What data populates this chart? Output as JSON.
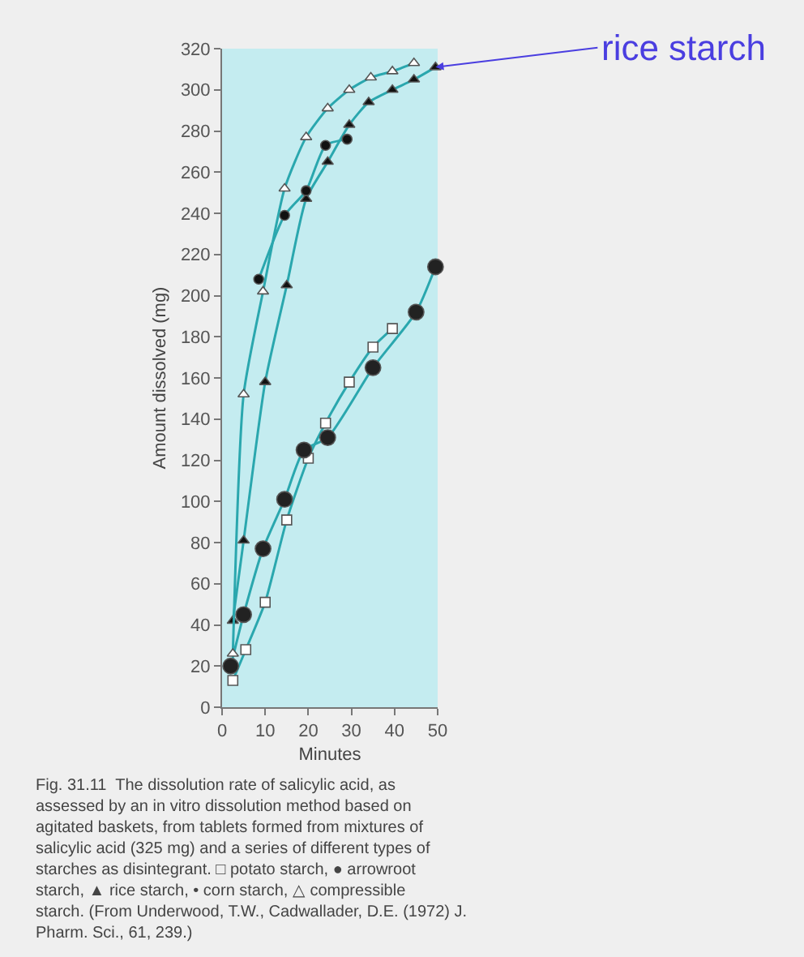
{
  "chart_data": {
    "type": "line",
    "xlabel": "Minutes",
    "ylabel": "Amount dissolved (mg)",
    "xlim": [
      0,
      50
    ],
    "ylim": [
      0,
      320
    ],
    "xticks": [
      0,
      10,
      20,
      30,
      40,
      50
    ],
    "yticks": [
      0,
      20,
      40,
      60,
      80,
      100,
      120,
      140,
      160,
      180,
      200,
      220,
      240,
      260,
      280,
      300,
      320
    ],
    "grid": false,
    "line_style": "solid",
    "series": [
      {
        "color": "#2aa7ae",
        "marker": "square",
        "colors": [
          "#ffffff",
          "#ffffff",
          "#ffffff",
          "#ffffff",
          "#ffffff",
          "#ffffff",
          "#ffffff",
          "#ffffff",
          "#ffffff"
        ],
        "x": [
          2.5,
          5.5,
          10,
          15,
          20,
          24,
          29.5,
          35,
          39.5
        ],
        "values": [
          13,
          28,
          51,
          91,
          121,
          138,
          158,
          175,
          184
        ]
      },
      {
        "color": "#2aa7ae",
        "marker": "circle",
        "colors": [
          "#222222",
          "#222222",
          "#222222",
          "#222222",
          "#222222",
          "#222222",
          "#222222",
          "#222222",
          "#222222"
        ],
        "x": [
          2,
          5,
          9.5,
          14.5,
          19,
          24.5,
          35,
          45,
          49.5
        ],
        "values": [
          20,
          45,
          77,
          101,
          125,
          131,
          165,
          192,
          214
        ]
      },
      {
        "color": "#2aa7ae",
        "marker": "triangle",
        "colors": [
          "#111111",
          "#111111",
          "#111111",
          "#111111",
          "#111111",
          "#111111",
          "#111111",
          "#111111",
          "#111111",
          "#111111",
          "#111111"
        ],
        "x": [
          2.5,
          5,
          10,
          15,
          19.5,
          24.5,
          29.5,
          34,
          39.5,
          44.5,
          49.5
        ],
        "values": [
          42,
          81,
          158,
          205,
          247,
          265,
          283,
          294,
          300,
          305,
          311
        ]
      },
      {
        "color": "#2aa7ae",
        "marker": "circle",
        "colors": [
          "#111111",
          "#111111",
          "#111111",
          "#111111",
          "#111111"
        ],
        "x": [
          8.5,
          14.5,
          19.5,
          24,
          29
        ],
        "values": [
          208,
          239,
          251,
          273,
          276
        ]
      },
      {
        "color": "#2aa7ae",
        "marker": "triangle",
        "colors": [
          "#ffffff",
          "#ffffff",
          "#ffffff",
          "#ffffff",
          "#ffffff",
          "#ffffff",
          "#ffffff",
          "#ffffff",
          "#ffffff",
          "#ffffff"
        ],
        "x": [
          2.5,
          5,
          9.5,
          14.5,
          19.5,
          24.5,
          29.5,
          34.5,
          39.5,
          44.5
        ],
        "values": [
          26,
          152,
          202,
          252,
          277,
          291,
          300,
          306,
          309,
          313
        ]
      }
    ],
    "annotations": [
      "Fig. 31.11  The dissolution rate of salicylic acid, as assessed by an in vitro dissolution method based on agitated baskets, from tablets formed from mixtures of salicylic acid (325 mg) and a series of different types of starches as disintegrant. □ potato starch, ● arrowroot starch, ▲ rice starch, • corn starch, △ compressible starch. (From Underwood, T.W., Cadwallader, D.E. (1972) J. Pharm. Sci., 61, 239.)",
      {
        "text": "rice starch",
        "x": 49.5,
        "y": 311
      }
    ]
  }
}
